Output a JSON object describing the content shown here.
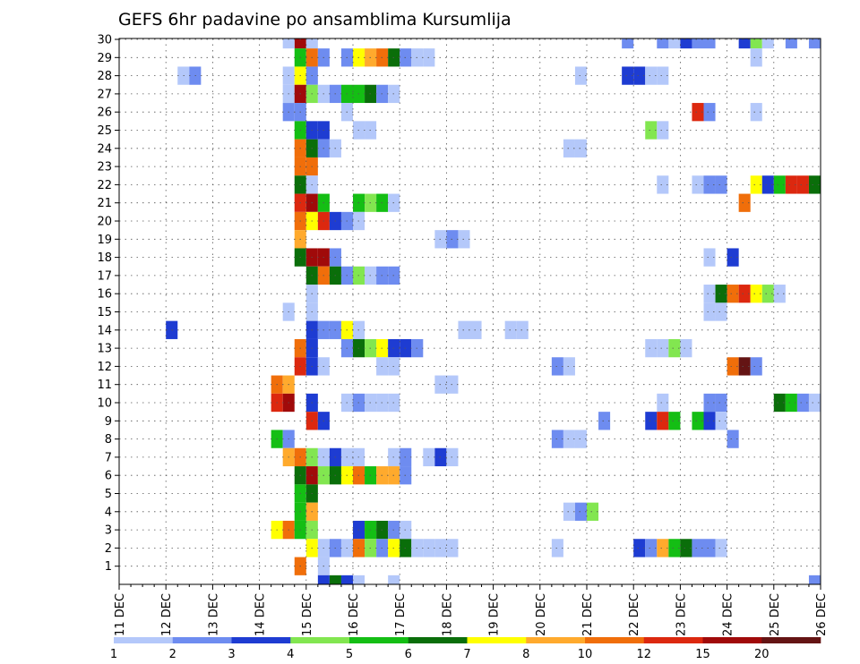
{
  "chart_data": {
    "type": "heatmap",
    "title": "GEFS 6hr padavine po ansamblima Kursumlija",
    "x_tick_labels": [
      "11 DEC",
      "12 DEC",
      "13 DEC",
      "14 DEC",
      "15 DEC",
      "16 DEC",
      "17 DEC",
      "18 DEC",
      "19 DEC",
      "20 DEC",
      "21 DEC",
      "22 DEC",
      "23 DEC",
      "24 DEC",
      "25 DEC",
      "26 DEC"
    ],
    "y_tick_labels": [
      "1",
      "2",
      "3",
      "4",
      "5",
      "6",
      "7",
      "8",
      "9",
      "10",
      "11",
      "12",
      "13",
      "14",
      "15",
      "16",
      "17",
      "18",
      "19",
      "20",
      "21",
      "22",
      "23",
      "24",
      "25",
      "26",
      "27",
      "28",
      "29",
      "30"
    ],
    "x_range_days": [
      11,
      26
    ],
    "y_range": [
      0,
      30
    ],
    "grid": true,
    "legend": {
      "position": "bottom",
      "colors": [
        "#b4c8fa",
        "#6e8cf0",
        "#1e3cd2",
        "#82e650",
        "#14be14",
        "#0a6e0a",
        "#ffff00",
        "#ffaa2d",
        "#f06e0a",
        "#dc280f",
        "#a00a0a",
        "#641414"
      ],
      "labels": [
        "1",
        "2",
        "3",
        "4",
        "5",
        "6",
        "7",
        "8",
        "10",
        "12",
        "15",
        "20"
      ]
    },
    "units_note": "cells: [member, day_fraction_start, color_index]; each cell spans one 6-hour step",
    "cells": [
      [
        30,
        14.75,
        10
      ],
      [
        30,
        14.5,
        0
      ],
      [
        30,
        15.0,
        0
      ],
      [
        30,
        21.75,
        1
      ],
      [
        30,
        22.5,
        1
      ],
      [
        30,
        22.75,
        0
      ],
      [
        30,
        23.0,
        2
      ],
      [
        30,
        23.25,
        1
      ],
      [
        30,
        23.5,
        1
      ],
      [
        30,
        24.25,
        2
      ],
      [
        30,
        24.5,
        3
      ],
      [
        30,
        24.75,
        0
      ],
      [
        30,
        25.25,
        1
      ],
      [
        30,
        25.75,
        1
      ],
      [
        29,
        14.75,
        4
      ],
      [
        29,
        15.0,
        8
      ],
      [
        29,
        15.25,
        1
      ],
      [
        29,
        15.75,
        1
      ],
      [
        29,
        16.0,
        6
      ],
      [
        29,
        16.25,
        7
      ],
      [
        29,
        16.5,
        8
      ],
      [
        29,
        16.75,
        5
      ],
      [
        29,
        17.0,
        1
      ],
      [
        29,
        17.25,
        0
      ],
      [
        29,
        17.5,
        0
      ],
      [
        29,
        24.5,
        0
      ],
      [
        28,
        12.25,
        0
      ],
      [
        28,
        12.5,
        1
      ],
      [
        28,
        14.5,
        0
      ],
      [
        28,
        14.75,
        6
      ],
      [
        28,
        15.0,
        1
      ],
      [
        28,
        20.75,
        0
      ],
      [
        28,
        21.75,
        2
      ],
      [
        28,
        22.0,
        2
      ],
      [
        28,
        22.25,
        0
      ],
      [
        28,
        22.5,
        0
      ],
      [
        27,
        14.5,
        0
      ],
      [
        27,
        14.75,
        10
      ],
      [
        27,
        15.0,
        3
      ],
      [
        27,
        15.25,
        0
      ],
      [
        27,
        15.5,
        1
      ],
      [
        27,
        15.75,
        4
      ],
      [
        27,
        16.0,
        4
      ],
      [
        27,
        16.25,
        5
      ],
      [
        27,
        16.5,
        1
      ],
      [
        27,
        16.75,
        0
      ],
      [
        26,
        14.5,
        1
      ],
      [
        26,
        14.75,
        1
      ],
      [
        26,
        15.75,
        0
      ],
      [
        26,
        23.25,
        9
      ],
      [
        26,
        23.5,
        1
      ],
      [
        26,
        24.5,
        0
      ],
      [
        25,
        14.75,
        4
      ],
      [
        25,
        15.0,
        2
      ],
      [
        25,
        15.25,
        2
      ],
      [
        25,
        16.0,
        0
      ],
      [
        25,
        16.25,
        0
      ],
      [
        25,
        22.25,
        3
      ],
      [
        25,
        22.5,
        0
      ],
      [
        24,
        14.75,
        8
      ],
      [
        24,
        15.0,
        5
      ],
      [
        24,
        15.25,
        1
      ],
      [
        24,
        15.5,
        0
      ],
      [
        24,
        20.5,
        0
      ],
      [
        24,
        20.75,
        0
      ],
      [
        23,
        14.75,
        8
      ],
      [
        23,
        15.0,
        8
      ],
      [
        22,
        14.75,
        5
      ],
      [
        22,
        15.0,
        0
      ],
      [
        22,
        22.5,
        0
      ],
      [
        22,
        23.25,
        0
      ],
      [
        22,
        23.5,
        1
      ],
      [
        22,
        23.75,
        1
      ],
      [
        22,
        24.5,
        6
      ],
      [
        22,
        24.75,
        2
      ],
      [
        22,
        25.0,
        4
      ],
      [
        22,
        25.25,
        9
      ],
      [
        22,
        25.5,
        9
      ],
      [
        22,
        25.75,
        5
      ],
      [
        21,
        14.75,
        9
      ],
      [
        21,
        15.0,
        10
      ],
      [
        21,
        15.25,
        4
      ],
      [
        21,
        16.0,
        4
      ],
      [
        21,
        16.25,
        3
      ],
      [
        21,
        16.5,
        4
      ],
      [
        21,
        16.75,
        0
      ],
      [
        21,
        24.25,
        8
      ],
      [
        20,
        14.75,
        8
      ],
      [
        20,
        15.0,
        6
      ],
      [
        20,
        15.25,
        9
      ],
      [
        20,
        15.5,
        2
      ],
      [
        20,
        15.75,
        1
      ],
      [
        20,
        16.0,
        0
      ],
      [
        19,
        14.75,
        7
      ],
      [
        19,
        17.75,
        0
      ],
      [
        19,
        18.0,
        1
      ],
      [
        19,
        18.25,
        0
      ],
      [
        18,
        14.75,
        5
      ],
      [
        18,
        15.0,
        10
      ],
      [
        18,
        15.25,
        10
      ],
      [
        18,
        15.5,
        1
      ],
      [
        18,
        23.5,
        0
      ],
      [
        18,
        24.0,
        2
      ],
      [
        17,
        15.0,
        5
      ],
      [
        17,
        15.25,
        8
      ],
      [
        17,
        15.5,
        5
      ],
      [
        17,
        15.75,
        1
      ],
      [
        17,
        16.0,
        3
      ],
      [
        17,
        16.25,
        0
      ],
      [
        17,
        16.5,
        1
      ],
      [
        17,
        16.75,
        1
      ],
      [
        16,
        15.0,
        0
      ],
      [
        16,
        23.5,
        0
      ],
      [
        16,
        23.75,
        5
      ],
      [
        16,
        24.0,
        8
      ],
      [
        16,
        24.25,
        9
      ],
      [
        16,
        24.5,
        6
      ],
      [
        16,
        24.75,
        3
      ],
      [
        16,
        25.0,
        0
      ],
      [
        15,
        14.5,
        0
      ],
      [
        15,
        15.0,
        0
      ],
      [
        15,
        23.5,
        0
      ],
      [
        15,
        23.75,
        0
      ],
      [
        14,
        12.0,
        2
      ],
      [
        14,
        15.0,
        2
      ],
      [
        14,
        15.25,
        1
      ],
      [
        14,
        15.5,
        1
      ],
      [
        14,
        15.75,
        6
      ],
      [
        14,
        16.0,
        0
      ],
      [
        14,
        18.25,
        0
      ],
      [
        14,
        18.5,
        0
      ],
      [
        14,
        19.25,
        0
      ],
      [
        14,
        19.5,
        0
      ],
      [
        13,
        14.75,
        8
      ],
      [
        13,
        15.0,
        2
      ],
      [
        13,
        15.75,
        1
      ],
      [
        13,
        16.0,
        5
      ],
      [
        13,
        16.25,
        3
      ],
      [
        13,
        16.5,
        6
      ],
      [
        13,
        16.75,
        2
      ],
      [
        13,
        17.0,
        2
      ],
      [
        13,
        17.25,
        1
      ],
      [
        13,
        22.25,
        0
      ],
      [
        13,
        22.5,
        0
      ],
      [
        13,
        22.75,
        3
      ],
      [
        13,
        23.0,
        0
      ],
      [
        12,
        14.75,
        9
      ],
      [
        12,
        15.0,
        2
      ],
      [
        12,
        15.25,
        0
      ],
      [
        12,
        16.5,
        0
      ],
      [
        12,
        16.75,
        0
      ],
      [
        12,
        20.25,
        1
      ],
      [
        12,
        20.5,
        0
      ],
      [
        12,
        24.0,
        8
      ],
      [
        12,
        24.25,
        11
      ],
      [
        12,
        24.5,
        1
      ],
      [
        11,
        14.25,
        8
      ],
      [
        11,
        14.5,
        7
      ],
      [
        11,
        17.75,
        0
      ],
      [
        11,
        18.0,
        0
      ],
      [
        10,
        14.25,
        9
      ],
      [
        10,
        14.5,
        10
      ],
      [
        10,
        15.0,
        2
      ],
      [
        10,
        15.75,
        0
      ],
      [
        10,
        16.0,
        1
      ],
      [
        10,
        16.25,
        0
      ],
      [
        10,
        16.5,
        0
      ],
      [
        10,
        16.75,
        0
      ],
      [
        10,
        22.5,
        0
      ],
      [
        10,
        23.5,
        1
      ],
      [
        10,
        23.75,
        1
      ],
      [
        10,
        25.0,
        5
      ],
      [
        10,
        25.25,
        4
      ],
      [
        10,
        25.5,
        1
      ],
      [
        10,
        25.75,
        0
      ],
      [
        9,
        15.0,
        9
      ],
      [
        9,
        15.25,
        2
      ],
      [
        9,
        21.25,
        1
      ],
      [
        9,
        22.25,
        2
      ],
      [
        9,
        22.5,
        9
      ],
      [
        9,
        22.75,
        4
      ],
      [
        9,
        23.25,
        4
      ],
      [
        9,
        23.5,
        2
      ],
      [
        9,
        23.75,
        0
      ],
      [
        8,
        14.25,
        4
      ],
      [
        8,
        14.5,
        1
      ],
      [
        8,
        20.25,
        1
      ],
      [
        8,
        20.5,
        0
      ],
      [
        8,
        20.75,
        0
      ],
      [
        8,
        24.0,
        1
      ],
      [
        7,
        14.5,
        7
      ],
      [
        7,
        14.75,
        8
      ],
      [
        7,
        15.0,
        3
      ],
      [
        7,
        15.25,
        0
      ],
      [
        7,
        15.5,
        2
      ],
      [
        7,
        15.75,
        0
      ],
      [
        7,
        16.0,
        0
      ],
      [
        7,
        16.75,
        0
      ],
      [
        7,
        17.0,
        1
      ],
      [
        7,
        17.5,
        0
      ],
      [
        7,
        17.75,
        2
      ],
      [
        7,
        18.0,
        0
      ],
      [
        6,
        14.75,
        5
      ],
      [
        6,
        15.0,
        10
      ],
      [
        6,
        15.25,
        3
      ],
      [
        6,
        15.5,
        5
      ],
      [
        6,
        15.75,
        6
      ],
      [
        6,
        16.0,
        8
      ],
      [
        6,
        16.25,
        4
      ],
      [
        6,
        16.5,
        7
      ],
      [
        6,
        16.75,
        7
      ],
      [
        6,
        17.0,
        1
      ],
      [
        5,
        14.75,
        4
      ],
      [
        5,
        15.0,
        5
      ],
      [
        4,
        14.75,
        4
      ],
      [
        4,
        15.0,
        7
      ],
      [
        4,
        20.5,
        0
      ],
      [
        4,
        20.75,
        1
      ],
      [
        4,
        21.0,
        3
      ],
      [
        3,
        14.25,
        6
      ],
      [
        3,
        14.5,
        8
      ],
      [
        3,
        14.75,
        4
      ],
      [
        3,
        15.0,
        3
      ],
      [
        3,
        16.0,
        2
      ],
      [
        3,
        16.25,
        4
      ],
      [
        3,
        16.5,
        5
      ],
      [
        3,
        16.75,
        1
      ],
      [
        3,
        17.0,
        0
      ],
      [
        2,
        15.0,
        6
      ],
      [
        2,
        15.25,
        0
      ],
      [
        2,
        15.5,
        1
      ],
      [
        2,
        15.75,
        0
      ],
      [
        2,
        16.0,
        8
      ],
      [
        2,
        16.25,
        3
      ],
      [
        2,
        16.5,
        1
      ],
      [
        2,
        16.75,
        6
      ],
      [
        2,
        17.0,
        5
      ],
      [
        2,
        17.25,
        0
      ],
      [
        2,
        17.5,
        0
      ],
      [
        2,
        17.75,
        0
      ],
      [
        2,
        18.0,
        0
      ],
      [
        2,
        20.25,
        0
      ],
      [
        2,
        22.0,
        2
      ],
      [
        2,
        22.25,
        1
      ],
      [
        2,
        22.5,
        7
      ],
      [
        2,
        22.75,
        4
      ],
      [
        2,
        23.0,
        5
      ],
      [
        2,
        23.25,
        1
      ],
      [
        2,
        23.5,
        1
      ],
      [
        2,
        23.75,
        0
      ],
      [
        1,
        14.75,
        8
      ],
      [
        1,
        15.25,
        0
      ],
      [
        0,
        15.25,
        2
      ],
      [
        0,
        15.5,
        5
      ],
      [
        0,
        15.75,
        2
      ],
      [
        0,
        16.0,
        0
      ],
      [
        0,
        16.75,
        0
      ],
      [
        0,
        25.75,
        1
      ]
    ]
  }
}
